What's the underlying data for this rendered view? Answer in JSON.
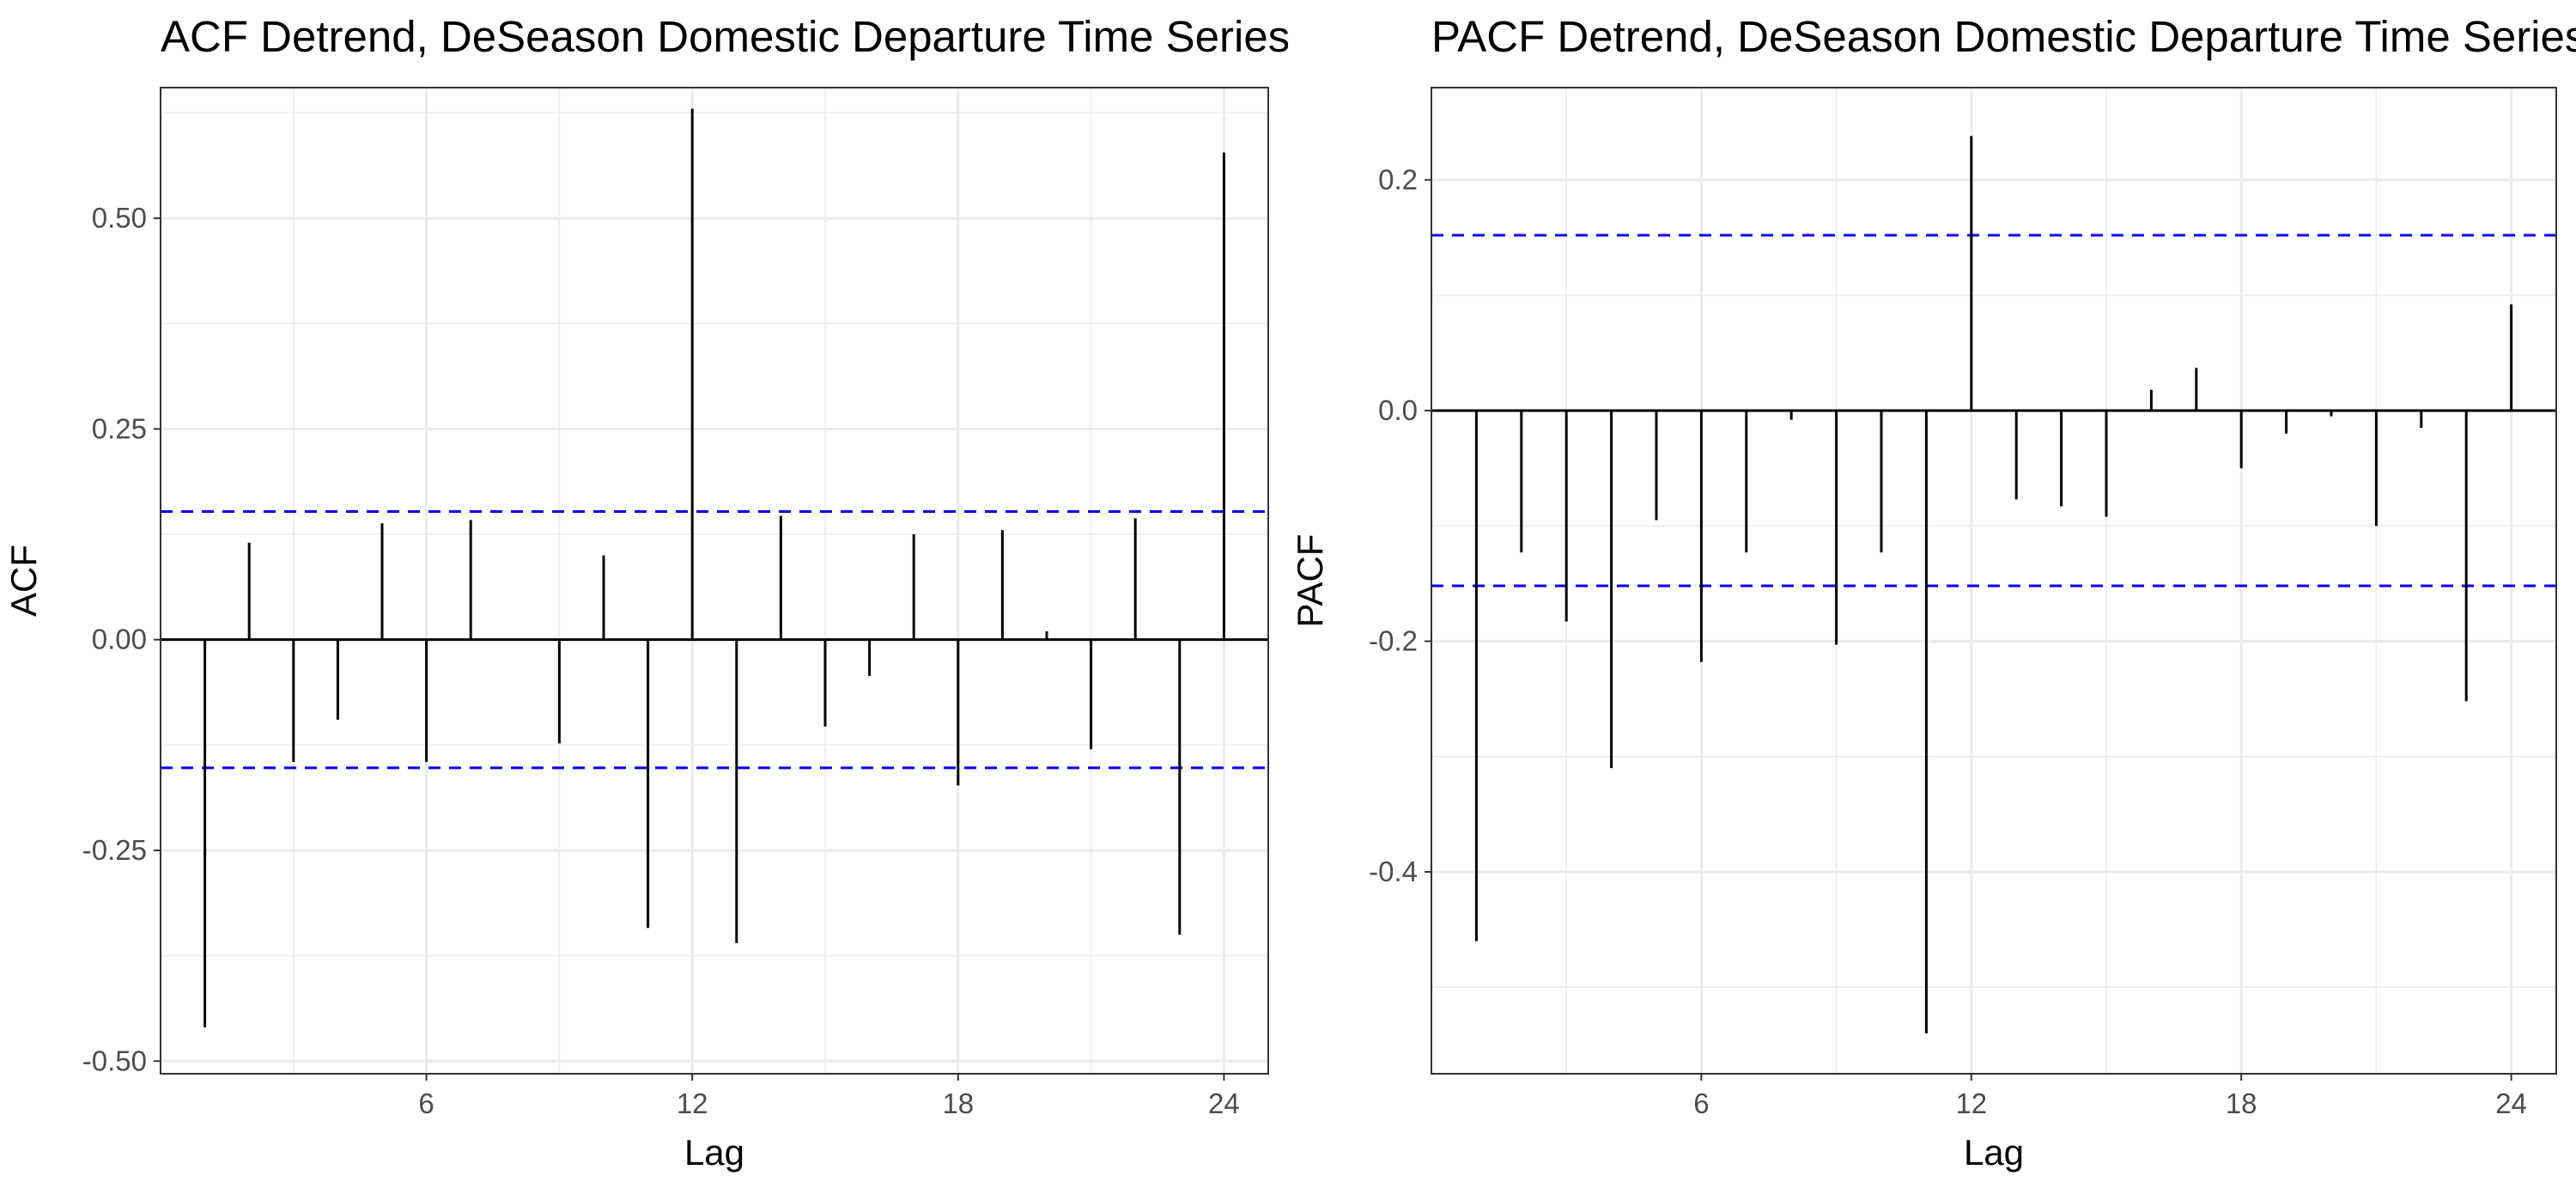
{
  "chart_data": [
    {
      "type": "bar",
      "title": "ACF Detrend, DeSeason Domestic Departure Time Series",
      "xlabel": "Lag",
      "ylabel": "ACF",
      "xlim": [
        0,
        25
      ],
      "ylim": [
        -0.515,
        0.655
      ],
      "x_ticks": [
        6,
        12,
        18,
        24
      ],
      "y_ticks": [
        -0.5,
        -0.25,
        0.0,
        0.25,
        0.5
      ],
      "y_tick_labels": [
        "-0.50",
        "-0.25",
        "0.00",
        "0.25",
        "0.50"
      ],
      "x_tick_labels": [
        "6",
        "12",
        "18",
        "24"
      ],
      "confidence_limit": 0.152,
      "grid": true,
      "lags": [
        1,
        2,
        3,
        4,
        5,
        6,
        7,
        8,
        9,
        10,
        11,
        12,
        13,
        14,
        15,
        16,
        17,
        18,
        19,
        20,
        21,
        22,
        23,
        24
      ],
      "values": [
        -0.46,
        0.115,
        -0.145,
        -0.095,
        0.138,
        -0.145,
        0.142,
        0.0,
        -0.123,
        0.1,
        -0.342,
        0.63,
        -0.36,
        0.147,
        -0.103,
        -0.043,
        0.125,
        -0.173,
        0.13,
        0.01,
        -0.13,
        0.144,
        -0.35,
        0.578
      ],
      "colors": {
        "bar": "#000000",
        "limit": "#0000ff"
      }
    },
    {
      "type": "bar",
      "title": "PACF Detrend, DeSeason Domestic Departure Time Series",
      "xlabel": "Lag",
      "ylabel": "PACF",
      "xlim": [
        0,
        25
      ],
      "ylim": [
        -0.575,
        0.28
      ],
      "x_ticks": [
        6,
        12,
        18,
        24
      ],
      "y_ticks": [
        -0.4,
        -0.2,
        0.0,
        0.2
      ],
      "y_tick_labels": [
        "-0.4",
        "-0.2",
        "0.0",
        "0.2"
      ],
      "x_tick_labels": [
        "6",
        "12",
        "18",
        "24"
      ],
      "confidence_limit": 0.152,
      "grid": true,
      "lags": [
        1,
        2,
        3,
        4,
        5,
        6,
        7,
        8,
        9,
        10,
        11,
        12,
        13,
        14,
        15,
        16,
        17,
        18,
        19,
        20,
        21,
        22,
        23,
        24
      ],
      "values": [
        -0.46,
        -0.123,
        -0.183,
        -0.31,
        -0.095,
        -0.218,
        -0.123,
        -0.008,
        -0.203,
        -0.123,
        -0.54,
        0.238,
        -0.077,
        -0.083,
        -0.092,
        0.018,
        0.037,
        -0.05,
        -0.02,
        -0.005,
        -0.1,
        -0.015,
        -0.252,
        0.092
      ],
      "colors": {
        "bar": "#000000",
        "limit": "#0000ff"
      }
    }
  ]
}
